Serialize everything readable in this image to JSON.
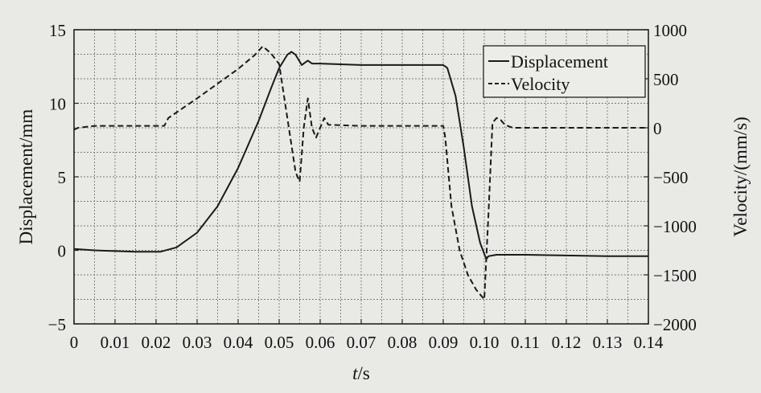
{
  "chart_data": {
    "type": "line",
    "title": "",
    "xlabel_italic": "t",
    "xlabel_unit": "/s",
    "ylabel_left": "Displacement/mm",
    "ylabel_right": "Velocity/(mm/s)",
    "xlim": [
      0,
      0.14
    ],
    "ylim_left": [
      -5,
      15
    ],
    "ylim_right": [
      -2000,
      1000
    ],
    "x_ticks": [
      "0",
      "0.01",
      "0.02",
      "0.03",
      "0.04",
      "0.05",
      "0.06",
      "0.07",
      "0.08",
      "0.09",
      "0.10",
      "0.11",
      "0.12",
      "0.13",
      "0.14"
    ],
    "y_left_ticks": [
      "15",
      "10",
      "5",
      "0",
      "−5"
    ],
    "y_right_ticks": [
      "1000",
      "500",
      "0",
      "−500",
      "−1000",
      "−1500",
      "−2000"
    ],
    "grid": true,
    "legend_position": "top-right",
    "series": [
      {
        "name": "Displacement",
        "axis": "left",
        "style": "solid",
        "color": "#1a1a1a",
        "x": [
          0,
          0.005,
          0.01,
          0.015,
          0.021,
          0.025,
          0.03,
          0.035,
          0.04,
          0.045,
          0.048,
          0.05,
          0.052,
          0.053,
          0.054,
          0.0555,
          0.056,
          0.057,
          0.058,
          0.059,
          0.06,
          0.07,
          0.08,
          0.09,
          0.091,
          0.093,
          0.095,
          0.097,
          0.099,
          0.1005,
          0.101,
          0.102,
          0.103,
          0.11,
          0.12,
          0.13,
          0.14
        ],
        "y": [
          0.1,
          0.0,
          -0.05,
          -0.1,
          -0.1,
          0.2,
          1.2,
          3.0,
          5.6,
          8.8,
          11.0,
          12.4,
          13.3,
          13.5,
          13.3,
          12.6,
          12.7,
          12.9,
          12.7,
          12.7,
          12.7,
          12.6,
          12.6,
          12.6,
          12.4,
          10.5,
          7.0,
          3.0,
          0.5,
          -0.6,
          -0.4,
          -0.35,
          -0.3,
          -0.3,
          -0.35,
          -0.4,
          -0.4
        ]
      },
      {
        "name": "Velocity",
        "axis": "right",
        "style": "dashed",
        "color": "#1a1a1a",
        "x": [
          0,
          0.001,
          0.005,
          0.01,
          0.015,
          0.02,
          0.022,
          0.023,
          0.03,
          0.035,
          0.04,
          0.044,
          0.046,
          0.048,
          0.05,
          0.052,
          0.054,
          0.055,
          0.056,
          0.057,
          0.058,
          0.059,
          0.06,
          0.061,
          0.062,
          0.07,
          0.08,
          0.09,
          0.0905,
          0.092,
          0.094,
          0.096,
          0.098,
          0.1,
          0.101,
          0.102,
          0.103,
          0.104,
          0.105,
          0.107,
          0.11,
          0.12,
          0.13,
          0.14
        ],
        "y": [
          -20,
          0,
          20,
          20,
          20,
          20,
          20,
          100,
          300,
          450,
          600,
          740,
          830,
          760,
          650,
          100,
          -450,
          -550,
          0,
          300,
          0,
          -100,
          0,
          100,
          30,
          20,
          20,
          20,
          -100,
          -800,
          -1250,
          -1500,
          -1650,
          -1750,
          -900,
          50,
          100,
          80,
          30,
          0,
          0,
          0,
          0,
          0
        ]
      }
    ]
  }
}
